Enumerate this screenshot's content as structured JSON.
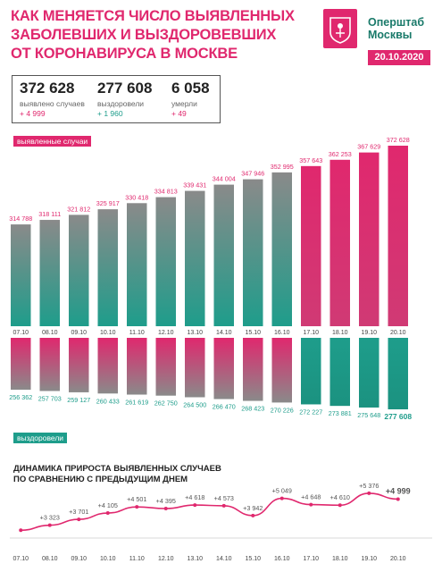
{
  "title": {
    "line1": "КАК МЕНЯЕТСЯ ЧИСЛО ВЫЯВЛЕННЫХ",
    "line2": "ЗАБОЛЕВШИХ И ВЫЗДОРОВЕВШИХ",
    "line3": "ОТ КОРОНАВИРУСА В МОСКВЕ"
  },
  "brand": {
    "line1": "Оперштаб",
    "line2": "Москвы",
    "date": "20.10.2020"
  },
  "stats": {
    "cases": {
      "value": "372 628",
      "label": "выявлено случаев",
      "delta": "+ 4 999"
    },
    "recovered": {
      "value": "277 608",
      "label": "выздоровели",
      "delta": "+ 1 960"
    },
    "deaths": {
      "value": "6 058",
      "label": "умерли",
      "delta": "+ 49"
    }
  },
  "labels": {
    "cases_tag": "выявленные случаи",
    "recovered_tag": "выздоровели",
    "dynamics_line1": "ДИНАМИКА ПРИРОСТА ВЫЯВЛЕННЫХ СЛУЧАЕВ",
    "dynamics_line2": "ПО СРАВНЕНИЮ С ПРЕДЫДУЩИМ ДНЕМ"
  },
  "colors": {
    "pink": "#e0286e",
    "teal": "#1e9d8b",
    "gray": "#8a8a8a"
  },
  "chart_data": [
    {
      "type": "bar",
      "title": "выявленные случаи",
      "categories": [
        "07.10",
        "08.10",
        "09.10",
        "10.10",
        "11.10",
        "12.10",
        "13.10",
        "14.10",
        "15.10",
        "16.10",
        "17.10",
        "18.10",
        "19.10",
        "20.10"
      ],
      "values": [
        314788,
        318111,
        321812,
        325917,
        330418,
        334813,
        339431,
        344004,
        347946,
        352995,
        357643,
        362253,
        367629,
        372628
      ],
      "value_labels": [
        "314 788",
        "318 111",
        "321 812",
        "325 917",
        "330 418",
        "334 813",
        "339 431",
        "344 004",
        "347 946",
        "352 995",
        "357 643",
        "362 253",
        "367 629",
        "372 628"
      ]
    },
    {
      "type": "bar",
      "title": "выздоровели",
      "categories": [
        "07.10",
        "08.10",
        "09.10",
        "10.10",
        "11.10",
        "12.10",
        "13.10",
        "14.10",
        "15.10",
        "16.10",
        "17.10",
        "18.10",
        "19.10",
        "20.10"
      ],
      "values": [
        256362,
        257703,
        259127,
        260433,
        261619,
        262750,
        264500,
        266470,
        268423,
        270226,
        272227,
        273881,
        275648,
        277608
      ],
      "value_labels": [
        "256 362",
        "257 703",
        "259 127",
        "260 433",
        "261 619",
        "262 750",
        "264 500",
        "266 470",
        "268 423",
        "270 226",
        "272 227",
        "273 881",
        "275 648",
        "277 608"
      ]
    },
    {
      "type": "line",
      "title": "ДИНАМИКА ПРИРОСТА ВЫЯВЛЕННЫХ СЛУЧАЕВ ПО СРАВНЕНИЮ С ПРЕДЫДУЩИМ ДНЕМ",
      "categories": [
        "07.10",
        "08.10",
        "09.10",
        "10.10",
        "11.10",
        "12.10",
        "13.10",
        "14.10",
        "15.10",
        "16.10",
        "17.10",
        "18.10",
        "19.10",
        "20.10"
      ],
      "values": [
        null,
        3323,
        3701,
        4105,
        4501,
        4395,
        4618,
        4573,
        3942,
        5049,
        4648,
        4610,
        5376,
        4999
      ],
      "value_labels": [
        "",
        "+3 323",
        "+3 701",
        "+4 105",
        "+4 501",
        "+4 395",
        "+4 618",
        "+4 573",
        "+3 942",
        "+5 049",
        "+4 648",
        "+4 610",
        "+5 376",
        "+4 999"
      ]
    }
  ]
}
